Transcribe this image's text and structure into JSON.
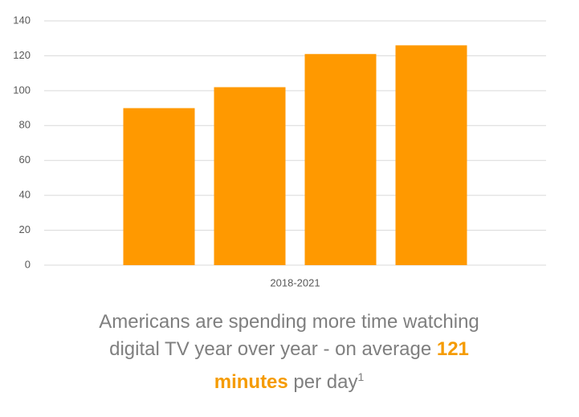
{
  "chart_data": {
    "type": "bar",
    "categories": [
      "2018-2021"
    ],
    "series": [
      {
        "color": "#ff9900",
        "values": [
          90
        ]
      },
      {
        "color": "#ff9900",
        "values": [
          102
        ]
      },
      {
        "color": "#ff9900",
        "values": [
          121
        ]
      },
      {
        "color": "#ff9900",
        "values": [
          126
        ]
      }
    ],
    "ylim": [
      0,
      140
    ],
    "yticks": [
      0,
      20,
      40,
      60,
      80,
      100,
      120,
      140
    ],
    "grid": true,
    "caption": {
      "text_before": "Americans are spending more time watching digital TV year over year - on average ",
      "highlight": "121 minutes",
      "text_after": " per day",
      "footnote": "1"
    }
  }
}
